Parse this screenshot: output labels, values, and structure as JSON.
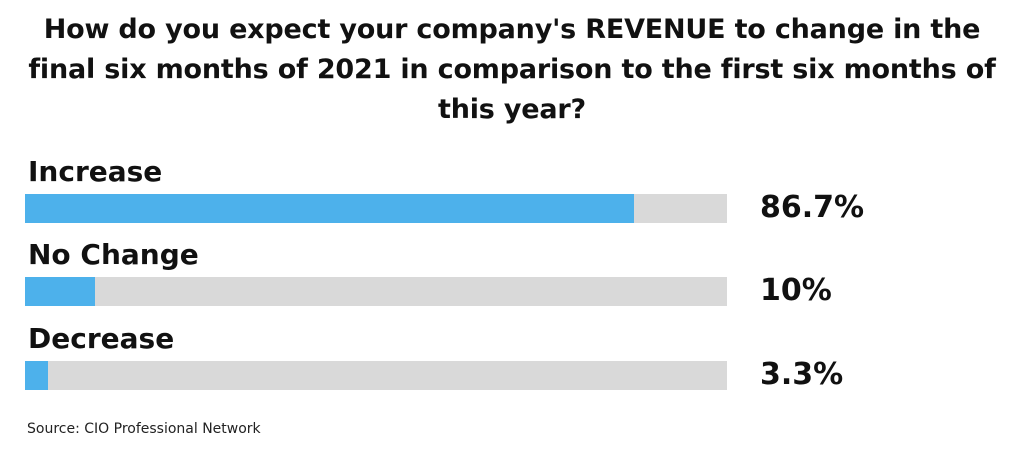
{
  "chart_data": {
    "type": "bar",
    "orientation": "horizontal",
    "title": "How do you expect your company's REVENUE to change in the final six months of 2021 in comparison to the first six months of this year?",
    "categories": [
      "Increase",
      "No Change",
      "Decrease"
    ],
    "values": [
      86.7,
      10,
      3.3
    ],
    "value_labels": [
      "86.7%",
      "10%",
      "3.3%"
    ],
    "unit": "%",
    "xlim": [
      0,
      100
    ],
    "grid": false,
    "legend": "none",
    "source": "Source: CIO Professional Network"
  },
  "colors": {
    "bar_fill": "#4db1eb",
    "track": "#d9d9d9",
    "text": "#111111"
  }
}
